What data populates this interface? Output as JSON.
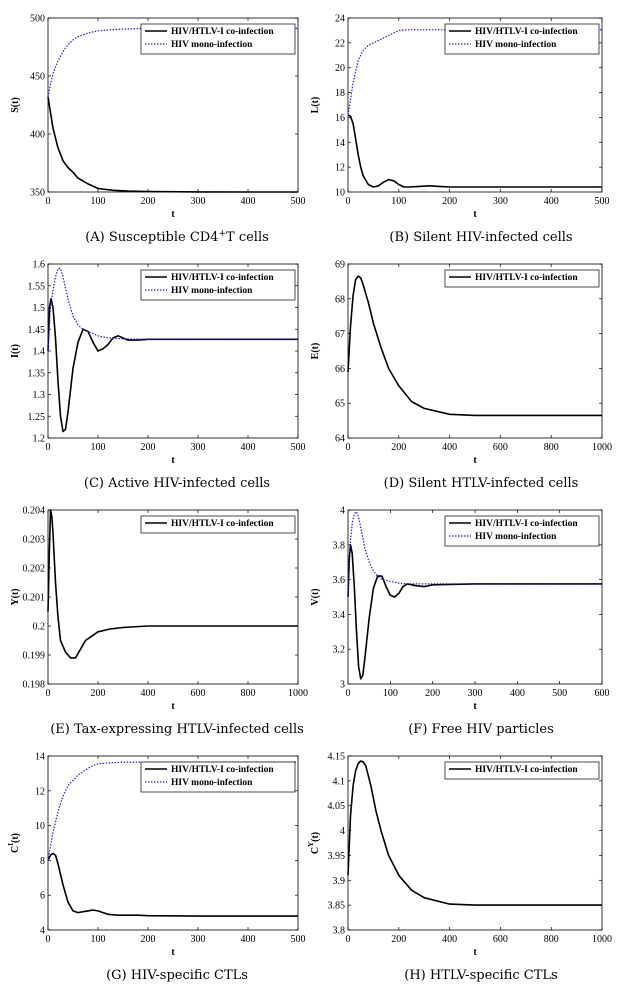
{
  "chart_data": [
    {
      "type": "line",
      "panel": "A",
      "caption_prefix": "(A)",
      "caption_text": "Susceptible CD4",
      "caption_sup": "+",
      "caption_suffix": "T cells",
      "xlabel": "t",
      "ylabel": "S(t)",
      "xlim": [
        0,
        500
      ],
      "ylim": [
        350,
        500
      ],
      "xticks": [
        0,
        100,
        200,
        300,
        400,
        500
      ],
      "yticks": [
        350,
        400,
        450,
        500
      ],
      "legend_position": "top-right",
      "series": [
        {
          "name": "HIV/HTLV-I co-infection",
          "style": "solid",
          "color": "#000000",
          "x": [
            0,
            10,
            20,
            30,
            40,
            50,
            60,
            80,
            100,
            130,
            160,
            200,
            300,
            400,
            500
          ],
          "y": [
            432,
            405,
            388,
            377,
            371,
            367,
            362,
            357,
            353,
            351.5,
            350.8,
            350.4,
            350.1,
            350,
            350
          ]
        },
        {
          "name": "HIV mono-infection",
          "style": "dotted",
          "color": "#1f1fc8",
          "x": [
            0,
            5,
            10,
            20,
            30,
            40,
            50,
            60,
            80,
            100,
            130,
            160,
            200,
            300,
            400,
            500
          ],
          "y": [
            432,
            443,
            452,
            463,
            471,
            477,
            481,
            484,
            487,
            489,
            490,
            490.5,
            491,
            491,
            491,
            491
          ]
        }
      ]
    },
    {
      "type": "line",
      "panel": "B",
      "caption_prefix": "(B)",
      "caption_text": "Silent HIV-infected cells",
      "xlabel": "t",
      "ylabel": "L(t)",
      "xlim": [
        0,
        500
      ],
      "ylim": [
        10,
        24
      ],
      "xticks": [
        0,
        100,
        200,
        300,
        400,
        500
      ],
      "yticks": [
        10,
        12,
        14,
        16,
        18,
        20,
        22,
        24
      ],
      "legend_position": "top-right",
      "series": [
        {
          "name": "HIV/HTLV-I co-infection",
          "style": "solid",
          "color": "#000000",
          "x": [
            0,
            5,
            10,
            15,
            20,
            25,
            30,
            40,
            50,
            60,
            70,
            80,
            90,
            100,
            110,
            120,
            140,
            160,
            180,
            200,
            300,
            400,
            500
          ],
          "y": [
            16.2,
            16.1,
            15.5,
            14.3,
            13.0,
            12.0,
            11.3,
            10.6,
            10.4,
            10.5,
            10.8,
            11.0,
            10.9,
            10.6,
            10.4,
            10.4,
            10.45,
            10.5,
            10.45,
            10.4,
            10.4,
            10.4,
            10.4
          ]
        },
        {
          "name": "HIV mono-infection",
          "style": "dotted",
          "color": "#1f1fc8",
          "x": [
            0,
            5,
            10,
            20,
            30,
            40,
            50,
            60,
            70,
            80,
            90,
            100,
            120,
            150,
            200,
            300,
            400,
            500
          ],
          "y": [
            16.2,
            17.4,
            18.8,
            20.6,
            21.4,
            21.8,
            22.0,
            22.2,
            22.4,
            22.6,
            22.8,
            23.0,
            23.05,
            23.05,
            23.05,
            23.05,
            23.05,
            23.05
          ]
        }
      ]
    },
    {
      "type": "line",
      "panel": "C",
      "caption_prefix": "(C)",
      "caption_text": "Active HIV-infected cells",
      "xlabel": "t",
      "ylabel": "I(t)",
      "xlim": [
        0,
        500
      ],
      "ylim": [
        1.2,
        1.6
      ],
      "xticks": [
        0,
        100,
        200,
        300,
        400,
        500
      ],
      "yticks": [
        1.2,
        1.25,
        1.3,
        1.35,
        1.4,
        1.45,
        1.5,
        1.55,
        1.6
      ],
      "legend_position": "top-right",
      "series": [
        {
          "name": "HIV/HTLV-I co-infection",
          "style": "solid",
          "color": "#000000",
          "x": [
            0,
            3,
            6,
            10,
            15,
            20,
            25,
            30,
            35,
            40,
            50,
            60,
            70,
            80,
            90,
            100,
            110,
            120,
            130,
            140,
            150,
            160,
            180,
            200,
            300,
            400,
            500
          ],
          "y": [
            1.4,
            1.5,
            1.52,
            1.5,
            1.43,
            1.33,
            1.25,
            1.215,
            1.22,
            1.26,
            1.36,
            1.42,
            1.45,
            1.445,
            1.42,
            1.4,
            1.405,
            1.415,
            1.43,
            1.435,
            1.43,
            1.425,
            1.425,
            1.427,
            1.427,
            1.427,
            1.427
          ]
        },
        {
          "name": "HIV mono-infection",
          "style": "dotted",
          "color": "#1f1fc8",
          "x": [
            0,
            5,
            10,
            15,
            20,
            25,
            30,
            40,
            50,
            60,
            70,
            80,
            100,
            120,
            150,
            200,
            300,
            400,
            500
          ],
          "y": [
            1.4,
            1.5,
            1.54,
            1.57,
            1.59,
            1.59,
            1.57,
            1.52,
            1.48,
            1.46,
            1.45,
            1.445,
            1.435,
            1.43,
            1.428,
            1.427,
            1.427,
            1.427,
            1.427
          ]
        }
      ]
    },
    {
      "type": "line",
      "panel": "D",
      "caption_prefix": "(D)",
      "caption_text": "Silent HTLV-infected cells",
      "xlabel": "t",
      "ylabel": "E(t)",
      "xlim": [
        0,
        1000
      ],
      "ylim": [
        64,
        69
      ],
      "xticks": [
        0,
        200,
        400,
        600,
        800,
        1000
      ],
      "yticks": [
        64,
        65,
        66,
        67,
        68,
        69
      ],
      "legend_position": "top-right",
      "series": [
        {
          "name": "HIV/HTLV-I co-infection",
          "style": "solid",
          "color": "#000000",
          "x": [
            0,
            10,
            20,
            30,
            40,
            50,
            60,
            80,
            100,
            130,
            160,
            200,
            250,
            300,
            400,
            500,
            600,
            800,
            1000
          ],
          "y": [
            65.9,
            67.2,
            68.1,
            68.55,
            68.65,
            68.6,
            68.4,
            67.9,
            67.3,
            66.6,
            66.0,
            65.5,
            65.05,
            64.85,
            64.68,
            64.65,
            64.65,
            64.65,
            64.65
          ]
        }
      ]
    },
    {
      "type": "line",
      "panel": "E",
      "caption_prefix": "(E)",
      "caption_text": "Tax-expressing HTLV-infected cells",
      "xlabel": "t",
      "ylabel": "Y(t)",
      "xlim": [
        0,
        1000
      ],
      "ylim": [
        0.198,
        0.204
      ],
      "xticks": [
        0,
        200,
        400,
        600,
        800,
        1000
      ],
      "yticks": [
        0.198,
        0.199,
        0.2,
        0.201,
        0.202,
        0.203,
        0.204
      ],
      "ytick_labels": [
        "0.198",
        "0.199",
        "0.2",
        "0.201",
        "0.202",
        "0.203",
        "0.204"
      ],
      "legend_position": "top-right",
      "series": [
        {
          "name": "HIV/HTLV-I co-infection",
          "style": "solid",
          "color": "#000000",
          "x": [
            0,
            5,
            10,
            15,
            20,
            30,
            40,
            50,
            70,
            90,
            110,
            130,
            150,
            200,
            250,
            300,
            400,
            600,
            800,
            1000
          ],
          "y": [
            0.2005,
            0.2025,
            0.204,
            0.2038,
            0.2032,
            0.2015,
            0.2003,
            0.1995,
            0.1991,
            0.1989,
            0.1989,
            0.1992,
            0.1995,
            0.1998,
            0.1999,
            0.19995,
            0.2,
            0.2,
            0.2,
            0.2
          ]
        }
      ]
    },
    {
      "type": "line",
      "panel": "F",
      "caption_prefix": "(F)",
      "caption_text": "Free HIV particles",
      "xlabel": "t",
      "ylabel": "V(t)",
      "xlim": [
        0,
        600
      ],
      "ylim": [
        3,
        4
      ],
      "xticks": [
        0,
        100,
        200,
        300,
        400,
        500,
        600
      ],
      "yticks": [
        3,
        3.2,
        3.4,
        3.6,
        3.8,
        4
      ],
      "legend_position": "top-right",
      "series": [
        {
          "name": "HIV/HTLV-I co-infection",
          "style": "solid",
          "color": "#000000",
          "x": [
            0,
            3,
            6,
            10,
            15,
            20,
            25,
            30,
            35,
            40,
            50,
            60,
            70,
            80,
            90,
            100,
            110,
            120,
            130,
            140,
            160,
            180,
            200,
            300,
            400,
            500,
            600
          ],
          "y": [
            3.5,
            3.72,
            3.8,
            3.75,
            3.55,
            3.3,
            3.1,
            3.03,
            3.05,
            3.15,
            3.38,
            3.55,
            3.62,
            3.62,
            3.56,
            3.51,
            3.5,
            3.52,
            3.56,
            3.575,
            3.565,
            3.56,
            3.57,
            3.575,
            3.575,
            3.575,
            3.575
          ]
        },
        {
          "name": "HIV mono-infection",
          "style": "dotted",
          "color": "#1f1fc8",
          "x": [
            0,
            5,
            10,
            15,
            20,
            25,
            30,
            40,
            50,
            60,
            70,
            80,
            100,
            120,
            150,
            200,
            300,
            400,
            500,
            600
          ],
          "y": [
            3.5,
            3.8,
            3.92,
            3.98,
            3.99,
            3.96,
            3.9,
            3.78,
            3.7,
            3.65,
            3.62,
            3.6,
            3.59,
            3.58,
            3.575,
            3.575,
            3.575,
            3.575,
            3.575,
            3.575
          ]
        }
      ]
    },
    {
      "type": "line",
      "panel": "G",
      "caption_prefix": "(G)",
      "caption_text": "HIV-specific CTLs",
      "xlabel": "t",
      "ylabel": "C",
      "ylabel_sup": "I",
      "ylabel_suffix": "(t)",
      "xlim": [
        0,
        500
      ],
      "ylim": [
        4,
        14
      ],
      "xticks": [
        0,
        100,
        200,
        300,
        400,
        500
      ],
      "yticks": [
        4,
        6,
        8,
        10,
        12,
        14
      ],
      "legend_position": "top-right",
      "series": [
        {
          "name": "HIV/HTLV-I co-infection",
          "style": "solid",
          "color": "#000000",
          "x": [
            0,
            5,
            10,
            15,
            20,
            30,
            40,
            50,
            60,
            70,
            80,
            90,
            100,
            110,
            120,
            140,
            160,
            180,
            200,
            300,
            400,
            500
          ],
          "y": [
            8.0,
            8.3,
            8.4,
            8.3,
            7.8,
            6.6,
            5.6,
            5.1,
            5.0,
            5.05,
            5.1,
            5.15,
            5.1,
            5.0,
            4.9,
            4.85,
            4.85,
            4.85,
            4.82,
            4.8,
            4.8,
            4.8
          ]
        },
        {
          "name": "HIV mono-infection",
          "style": "dotted",
          "color": "#1f1fc8",
          "x": [
            0,
            5,
            10,
            20,
            30,
            40,
            50,
            60,
            70,
            80,
            90,
            100,
            120,
            150,
            200,
            300,
            400,
            500
          ],
          "y": [
            8.0,
            8.8,
            9.6,
            10.8,
            11.7,
            12.3,
            12.6,
            12.9,
            13.1,
            13.3,
            13.45,
            13.55,
            13.6,
            13.65,
            13.65,
            13.65,
            13.65,
            13.65
          ]
        }
      ]
    },
    {
      "type": "line",
      "panel": "H",
      "caption_prefix": "(H)",
      "caption_text": "HTLV-specific CTLs",
      "xlabel": "t",
      "ylabel": "C",
      "ylabel_sup": "Y",
      "ylabel_suffix": "(t)",
      "xlim": [
        0,
        1000
      ],
      "ylim": [
        3.8,
        4.15
      ],
      "xticks": [
        0,
        200,
        400,
        600,
        800,
        1000
      ],
      "yticks": [
        3.8,
        3.85,
        3.9,
        3.95,
        4,
        4.05,
        4.1,
        4.15
      ],
      "ytick_labels": [
        "3.8",
        "3.85",
        "3.9",
        "3.95",
        "4",
        "4.05",
        "4.1",
        "4.15"
      ],
      "legend_position": "top-right",
      "series": [
        {
          "name": "HIV/HTLV-I co-infection",
          "style": "solid",
          "color": "#000000",
          "x": [
            0,
            10,
            20,
            30,
            40,
            50,
            60,
            70,
            90,
            110,
            130,
            160,
            200,
            250,
            300,
            400,
            500,
            600,
            800,
            1000
          ],
          "y": [
            3.91,
            4.03,
            4.09,
            4.12,
            4.135,
            4.14,
            4.138,
            4.13,
            4.09,
            4.04,
            4.0,
            3.95,
            3.91,
            3.88,
            3.865,
            3.852,
            3.85,
            3.85,
            3.85,
            3.85
          ]
        }
      ]
    }
  ]
}
